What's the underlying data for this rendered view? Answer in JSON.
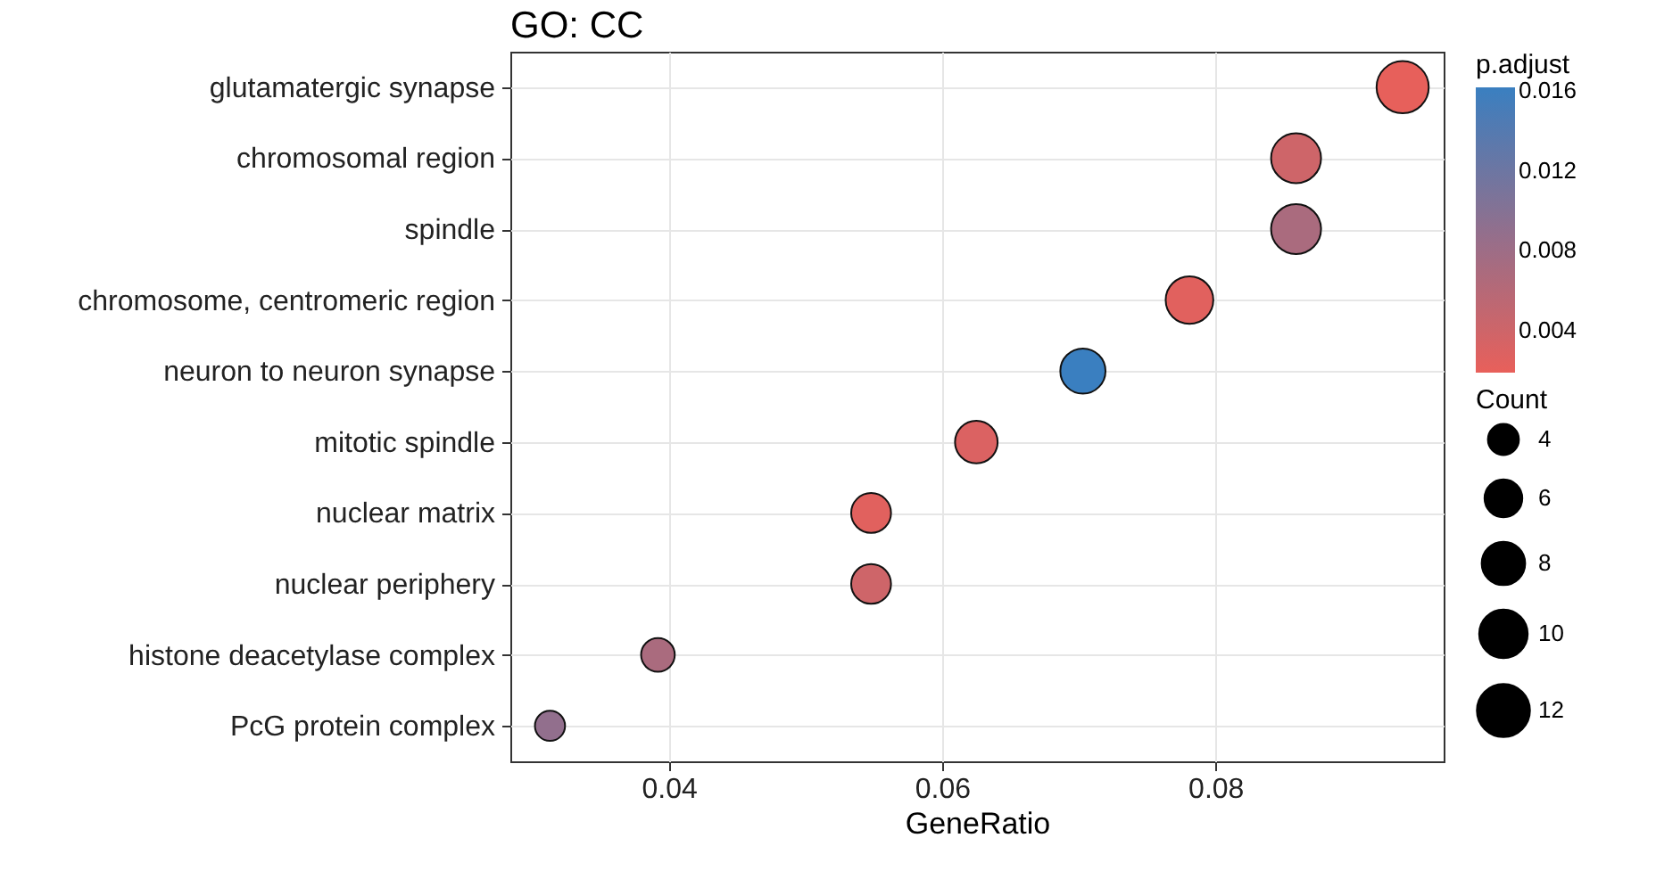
{
  "chart_data": {
    "type": "bubble",
    "title": "GO: CC",
    "xlabel": "GeneRatio",
    "legend_title": "Count",
    "clabel": "p.adjust",
    "categories": [
      "glutamatergic synapse",
      "chromosomal region",
      "spindle",
      "chromosome, centromeric region",
      "neuron to neuron synapse",
      "mitotic spindle",
      "nuclear matrix",
      "nuclear periphery",
      "histone deacetylase complex",
      "PcG protein complex"
    ],
    "values": [
      0.0937,
      0.0859,
      0.0859,
      0.0781,
      0.0703,
      0.0625,
      0.0548,
      0.0548,
      0.0392,
      0.0313
    ],
    "sizes": [
      12,
      11,
      11,
      10,
      9,
      8,
      7,
      7,
      5,
      4
    ],
    "cvalues": [
      0.002,
      0.004,
      0.007,
      0.0025,
      0.0162,
      0.003,
      0.0025,
      0.004,
      0.007,
      0.009
    ],
    "size_legend": [
      4,
      6,
      8,
      10,
      12
    ],
    "clim": [
      0.0019,
      0.0162
    ],
    "cticks": [
      0.004,
      0.008,
      0.012,
      0.016
    ],
    "orientation": "horizontal",
    "xlim": [
      0.0284,
      0.0967
    ],
    "xticks": [
      0.04,
      0.06,
      0.08
    ],
    "grid": true
  }
}
